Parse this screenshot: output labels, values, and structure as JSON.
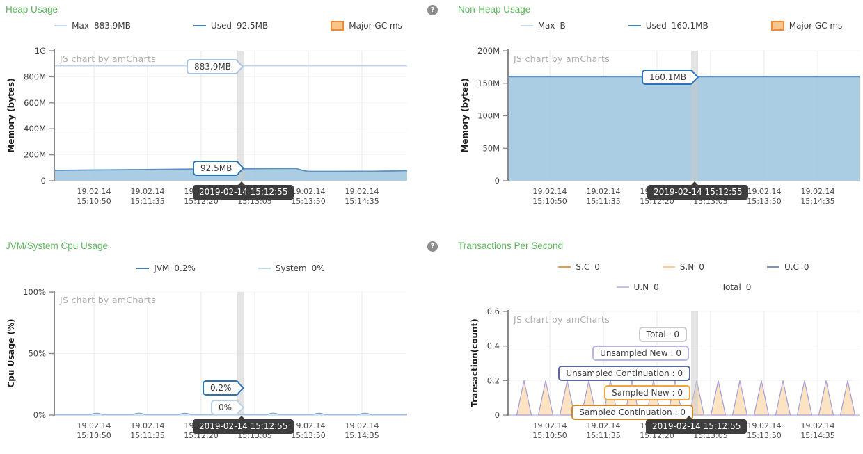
{
  "app": {
    "watermark": "JS chart by amCharts"
  },
  "icons": {
    "help_glyph": "?"
  },
  "cursor": {
    "time_label": "2019-02-14 15:12:55"
  },
  "x_axis": {
    "tick_labels": [
      [
        "19.02.14",
        "15:10:50"
      ],
      [
        "19.02.14",
        "15:11:35"
      ],
      [
        "19.02.14",
        "15:12:20"
      ],
      [
        "19.02.14",
        "15:13:05"
      ],
      [
        "19.02.14",
        "15:13:50"
      ],
      [
        "19.02.14",
        "15:14:35"
      ]
    ]
  },
  "chart_data": [
    {
      "id": "heap",
      "type": "area",
      "title": "Heap Usage",
      "ylabel": "Memory (bytes)",
      "ylim": [
        0,
        1000
      ],
      "y_unit": "MB",
      "yticks": [
        {
          "value": 1000,
          "label": "1G"
        },
        {
          "value": 800,
          "label": "800M"
        },
        {
          "value": 600,
          "label": "600M"
        },
        {
          "value": 400,
          "label": "400M"
        },
        {
          "value": 200,
          "label": "200M"
        },
        {
          "value": 0,
          "label": "0"
        }
      ],
      "legend": [
        {
          "name": "max",
          "label": "Max",
          "value": "883.9MB",
          "marker": "line",
          "color": "#c3d7ec"
        },
        {
          "name": "used",
          "label": "Used",
          "value": "92.5MB",
          "marker": "line",
          "color": "#4a7fb5"
        },
        {
          "name": "major-gc",
          "label": "Major GC ms",
          "value": "",
          "marker": "box",
          "color": "#ef8a39",
          "fill": "#f9c58b"
        }
      ],
      "series": [
        {
          "name": "Max",
          "type": "hline",
          "color": "#c3d7ec",
          "value": 883.9
        },
        {
          "name": "Used",
          "type": "area",
          "stroke": "#5b94c4",
          "fill": "#a7cae2",
          "points": [
            [
              0,
              80
            ],
            [
              0.1,
              83
            ],
            [
              0.25,
              86
            ],
            [
              0.4,
              90
            ],
            [
              0.5,
              92
            ],
            [
              0.56,
              92.5
            ],
            [
              0.62,
              94
            ],
            [
              0.685,
              95
            ],
            [
              0.705,
              78
            ],
            [
              0.72,
              72
            ],
            [
              0.8,
              72
            ],
            [
              0.9,
              73
            ],
            [
              0.97,
              76
            ],
            [
              1,
              78
            ]
          ]
        }
      ],
      "balloons": [
        {
          "text": "883.9MB",
          "color": "#abc3de"
        },
        {
          "text": "92.5MB",
          "color": "#2d74b5"
        }
      ],
      "cursor_time": "2019-02-14 15:12:55",
      "has_help_icon": false
    },
    {
      "id": "nonheap",
      "type": "area",
      "title": "Non-Heap Usage",
      "ylabel": "Memory (bytes)",
      "ylim": [
        0,
        200
      ],
      "y_unit": "MB",
      "yticks": [
        {
          "value": 200,
          "label": "200M"
        },
        {
          "value": 150,
          "label": "150M"
        },
        {
          "value": 100,
          "label": "100M"
        },
        {
          "value": 50,
          "label": "50M"
        },
        {
          "value": 0,
          "label": "0"
        }
      ],
      "legend": [
        {
          "name": "max",
          "label": "Max",
          "value": "B",
          "marker": "line",
          "color": "#c3d7ec"
        },
        {
          "name": "used",
          "label": "Used",
          "value": "160.1MB",
          "marker": "line",
          "color": "#4a7fb5"
        },
        {
          "name": "major-gc",
          "label": "Major GC ms",
          "value": "",
          "marker": "box",
          "color": "#ef8a39",
          "fill": "#f9c58b"
        }
      ],
      "series": [
        {
          "name": "Used",
          "type": "area",
          "stroke": "#5b94c4",
          "fill": "#a7cae2",
          "points": [
            [
              0,
              160.1
            ],
            [
              1,
              160.1
            ]
          ]
        }
      ],
      "balloons": [
        {
          "text": "160.1MB",
          "color": "#2d74b5"
        }
      ],
      "cursor_time": "2019-02-14 15:12:55",
      "has_help_icon": true
    },
    {
      "id": "cpu",
      "type": "line",
      "title": "JVM/System Cpu Usage",
      "ylabel": "Cpu Usage (%)",
      "ylim": [
        0,
        100
      ],
      "y_unit": "%",
      "yticks": [
        {
          "value": 100,
          "label": "100%"
        },
        {
          "value": 50,
          "label": "50%"
        },
        {
          "value": 0,
          "label": "0%"
        }
      ],
      "legend": [
        {
          "name": "jvm",
          "label": "JVM",
          "value": "0.2%",
          "marker": "line",
          "color": "#4a7fb5"
        },
        {
          "name": "system",
          "label": "System",
          "value": "0%",
          "marker": "line",
          "color": "#c3d7ec"
        }
      ],
      "series": [
        {
          "name": "System",
          "type": "hline",
          "color": "#c9dcee",
          "value": 0
        },
        {
          "name": "JVM",
          "type": "bumpline",
          "stroke": "#7ea8cc",
          "fill": "#d8e6f2",
          "baseline": 0.2,
          "bump_value": 2,
          "bump_fracs": [
            0.12,
            0.24,
            0.37,
            0.49,
            0.62,
            0.75,
            0.88
          ]
        }
      ],
      "balloons": [
        {
          "text": "0.2%",
          "color": "#2d74b5"
        },
        {
          "text": "0%",
          "color": "#b9cfe4"
        }
      ],
      "cursor_time": "2019-02-14 15:12:55",
      "has_help_icon": false
    },
    {
      "id": "tps",
      "type": "area",
      "title": "Transactions Per Second",
      "ylabel": "Transaction(count)",
      "ylim": [
        0,
        0.6
      ],
      "y_unit": "count",
      "yticks": [
        {
          "value": 0.6,
          "label": "0.6"
        },
        {
          "value": 0.4,
          "label": "0.4"
        },
        {
          "value": 0.2,
          "label": "0.2"
        },
        {
          "value": 0,
          "label": "0"
        }
      ],
      "legend": [
        {
          "name": "sc",
          "label": "S.C",
          "value": "0",
          "marker": "line",
          "color": "#e3a13c"
        },
        {
          "name": "sn",
          "label": "S.N",
          "value": "0",
          "marker": "line",
          "color": "#f3cf8f"
        },
        {
          "name": "uc",
          "label": "U.C",
          "value": "0",
          "marker": "line",
          "color": "#8291b4"
        },
        {
          "name": "un",
          "label": "U.N",
          "value": "0",
          "marker": "line",
          "color": "#c5c2ec"
        },
        {
          "name": "total",
          "label": "Total",
          "value": "0",
          "marker": "none",
          "color": ""
        }
      ],
      "legend_rows": [
        3,
        2
      ],
      "series": [
        {
          "name": "Sampled New",
          "type": "spikes",
          "stroke": "#a39edb",
          "fill": "#fce3c1",
          "peak_value": 0.2,
          "base_value": 0,
          "num_peaks": 16
        }
      ],
      "balloons": [
        {
          "text": "Total : 0",
          "color": "#c9c9c9"
        },
        {
          "text": "Unsampled New : 0",
          "color": "#b9b5e8"
        },
        {
          "text": "Unsampled Continuation : 0",
          "color": "#5a6b9b"
        },
        {
          "text": "Sampled New : 0",
          "color": "#f0a73e"
        },
        {
          "text": "Sampled Continuation : 0",
          "color": "#cd8a2e"
        }
      ],
      "cursor_time": "2019-02-14 15:12:55",
      "has_help_icon": true
    }
  ]
}
